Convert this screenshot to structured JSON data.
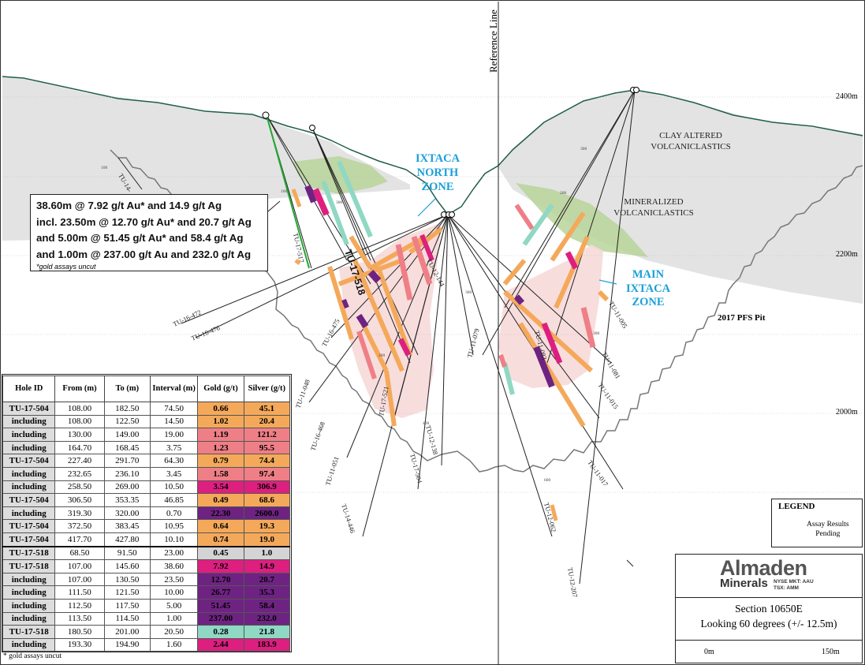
{
  "section": {
    "reference_line_label": "Reference Line",
    "elevations": [
      "2400m",
      "2200m",
      "2000m"
    ],
    "pit_label": "2017 PFS Pit",
    "zone_labels": {
      "north": [
        "IXTACA",
        "NORTH",
        "ZONE"
      ],
      "main": [
        "MAIN",
        "IXTACA",
        "ZONE"
      ],
      "clay": [
        "CLAY ALTERED",
        "VOLCANICLASTICS"
      ],
      "mineralized": [
        "MINERALIZED",
        "VOLCANICLASTICS"
      ]
    },
    "drill_holes": {
      "tu_14": "TU-14-",
      "tu_16_472": "TU-16-472",
      "tu_16_476": "TU-16-476",
      "tu_16_475": "TU-16-475",
      "tu_11_048": "TU-11-048",
      "tu_16_468": "TU-16-468",
      "tu_11_051": "TU-11-051",
      "tu_14_446": "TU-14-446",
      "tu_17_517": "TU-17-517",
      "tu_17_518": "TU-17-518",
      "tu_12_144": "TU-12-144",
      "tu_17_521": "TU-17-521",
      "tu_17_504": "TU-17-504",
      "tu_12_138": "TU-12-138",
      "tu_11_079": "TU-11-079",
      "tu_11_083": "TU-11-083",
      "tu_11_081": "TU-11-081",
      "tu_11_005": "TU-11-005",
      "tu_11_015": "TU-11-015",
      "tu_11_017": "TU-11-017",
      "tu_12_062": "TU-12-062",
      "tu_12_207": "TU-12-207"
    },
    "depth_ticks": [
      "100",
      "200",
      "300",
      "400",
      "500",
      "600"
    ]
  },
  "callout": {
    "lines": [
      "38.60m @ 7.92 g/t Au* and 14.9 g/t Ag",
      "incl. 23.50m @ 12.70 g/t Au* and 20.7 g/t Ag",
      "and 5.00m @ 51.45 g/t Au* and 58.4 g/t Ag",
      "and 1.00m @ 237.00 g/t Au and 232.0 g/t Ag"
    ],
    "note": "*gold assays uncut"
  },
  "table": {
    "headers": [
      "Hole ID",
      "From (m)",
      "To (m)",
      "Interval (m)",
      "Gold (g/t)",
      "Silver (g/t)"
    ],
    "rows": [
      {
        "id": "TU-17-504",
        "from": "108.00",
        "to": "182.50",
        "interval": "74.50",
        "gold": "0.66",
        "silver": "45.1",
        "gold_color": "#f4a95a",
        "silver_color": "#f4a95a",
        "gold_text": "#000",
        "silver_text": "#000",
        "break": false
      },
      {
        "id": "including",
        "from": "108.00",
        "to": "122.50",
        "interval": "14.50",
        "gold": "1.02",
        "silver": "20.4",
        "gold_color": "#f4a95a",
        "silver_color": "#f4a95a",
        "gold_text": "#000",
        "silver_text": "#000",
        "break": false
      },
      {
        "id": "including",
        "from": "130.00",
        "to": "149.00",
        "interval": "19.00",
        "gold": "1.19",
        "silver": "121.2",
        "gold_color": "#ef7f86",
        "silver_color": "#ef7f86",
        "gold_text": "#000",
        "silver_text": "#000",
        "break": false
      },
      {
        "id": "including",
        "from": "164.70",
        "to": "168.45",
        "interval": "3.75",
        "gold": "1.23",
        "silver": "95.5",
        "gold_color": "#ef7f86",
        "silver_color": "#ef7f86",
        "gold_text": "#000",
        "silver_text": "#000",
        "break": false
      },
      {
        "id": "TU-17-504",
        "from": "227.40",
        "to": "291.70",
        "interval": "64.30",
        "gold": "0.79",
        "silver": "74.4",
        "gold_color": "#f4a95a",
        "silver_color": "#f4a95a",
        "gold_text": "#000",
        "silver_text": "#000",
        "break": false
      },
      {
        "id": "including",
        "from": "232.65",
        "to": "236.10",
        "interval": "3.45",
        "gold": "1.58",
        "silver": "97.4",
        "gold_color": "#ef7f86",
        "silver_color": "#ef7f86",
        "gold_text": "#000",
        "silver_text": "#000",
        "break": false
      },
      {
        "id": "including",
        "from": "258.50",
        "to": "269.00",
        "interval": "10.50",
        "gold": "3.54",
        "silver": "306.9",
        "gold_color": "#dd1f80",
        "silver_color": "#dd1f80",
        "gold_text": "#000",
        "silver_text": "#000",
        "break": false
      },
      {
        "id": "TU-17-504",
        "from": "306.50",
        "to": "353.35",
        "interval": "46.85",
        "gold": "0.49",
        "silver": "68.6",
        "gold_color": "#f4a95a",
        "silver_color": "#f4a95a",
        "gold_text": "#000",
        "silver_text": "#000",
        "break": false
      },
      {
        "id": "including",
        "from": "319.30",
        "to": "320.00",
        "interval": "0.70",
        "gold": "22.30",
        "silver": "2600.0",
        "gold_color": "#6e2382",
        "silver_color": "#6e2382",
        "gold_text": "#000",
        "silver_text": "#000",
        "break": false
      },
      {
        "id": "TU-17-504",
        "from": "372.50",
        "to": "383.45",
        "interval": "10.95",
        "gold": "0.64",
        "silver": "19.3",
        "gold_color": "#f4a95a",
        "silver_color": "#f4a95a",
        "gold_text": "#000",
        "silver_text": "#000",
        "break": false
      },
      {
        "id": "TU-17-504",
        "from": "417.70",
        "to": "427.80",
        "interval": "10.10",
        "gold": "0.74",
        "silver": "19.0",
        "gold_color": "#f4a95a",
        "silver_color": "#f4a95a",
        "gold_text": "#000",
        "silver_text": "#000",
        "break": false
      },
      {
        "id": "TU-17-518",
        "from": "68.50",
        "to": "91.50",
        "interval": "23.00",
        "gold": "0.45",
        "silver": "1.0",
        "gold_color": "#d4d4d4",
        "silver_color": "#d4d4d4",
        "gold_text": "#000",
        "silver_text": "#000",
        "break": true
      },
      {
        "id": "TU-17-518",
        "from": "107.00",
        "to": "145.60",
        "interval": "38.60",
        "gold": "7.92",
        "silver": "14.9",
        "gold_color": "#dd1f80",
        "silver_color": "#dd1f80",
        "gold_text": "#000",
        "silver_text": "#000",
        "break": false
      },
      {
        "id": "including",
        "from": "107.00",
        "to": "130.50",
        "interval": "23.50",
        "gold": "12.70",
        "silver": "20.7",
        "gold_color": "#6e2382",
        "silver_color": "#6e2382",
        "gold_text": "#000",
        "silver_text": "#000",
        "break": false
      },
      {
        "id": "including",
        "from": "111.50",
        "to": "121.50",
        "interval": "10.00",
        "gold": "26.77",
        "silver": "35.3",
        "gold_color": "#6e2382",
        "silver_color": "#6e2382",
        "gold_text": "#000",
        "silver_text": "#000",
        "break": false
      },
      {
        "id": "including",
        "from": "112.50",
        "to": "117.50",
        "interval": "5.00",
        "gold": "51.45",
        "silver": "58.4",
        "gold_color": "#6e2382",
        "silver_color": "#6e2382",
        "gold_text": "#000",
        "silver_text": "#000",
        "break": false
      },
      {
        "id": "including",
        "from": "113.50",
        "to": "114.50",
        "interval": "1.00",
        "gold": "237.00",
        "silver": "232.0",
        "gold_color": "#6e2382",
        "silver_color": "#6e2382",
        "gold_text": "#000",
        "silver_text": "#000",
        "break": false
      },
      {
        "id": "TU-17-518",
        "from": "180.50",
        "to": "201.00",
        "interval": "20.50",
        "gold": "0.28",
        "silver": "21.8",
        "gold_color": "#8fd8c4",
        "silver_color": "#8fd8c4",
        "gold_text": "#000",
        "silver_text": "#000",
        "break": false
      },
      {
        "id": "including",
        "from": "193.30",
        "to": "194.90",
        "interval": "1.60",
        "gold": "2.44",
        "silver": "183.9",
        "gold_color": "#dd1f80",
        "silver_color": "#dd1f80",
        "gold_text": "#000",
        "silver_text": "#000",
        "break": false
      }
    ],
    "footnote": "* gold assays uncut"
  },
  "legend": {
    "title": "LEGEND",
    "item_label_1": "Assay Results",
    "item_label_2": "Pending",
    "pending_color": "#22a830"
  },
  "title_block": {
    "company": "Almaden",
    "company_sub": "Minerals",
    "nyse": "NYSE MKT: AAU",
    "tsx": "TSX: AMM",
    "section": "Section 10650E",
    "looking": "Looking 60 degrees (+/- 12.5m)",
    "scale_start": "0m",
    "scale_end": "150m"
  },
  "colors": {
    "zone_label": "#1aa0d8",
    "topography": "#1f5d4a",
    "clay_zone": "#e3e3e3",
    "mineralized_zone": "#b8d39a",
    "halo": "#f7d9d9",
    "grade_low": "#f4a95a",
    "grade_mid": "#ef7f86",
    "grade_high": "#dd1f80",
    "grade_very_high": "#6e2382",
    "grade_teal": "#8fd8c4"
  }
}
